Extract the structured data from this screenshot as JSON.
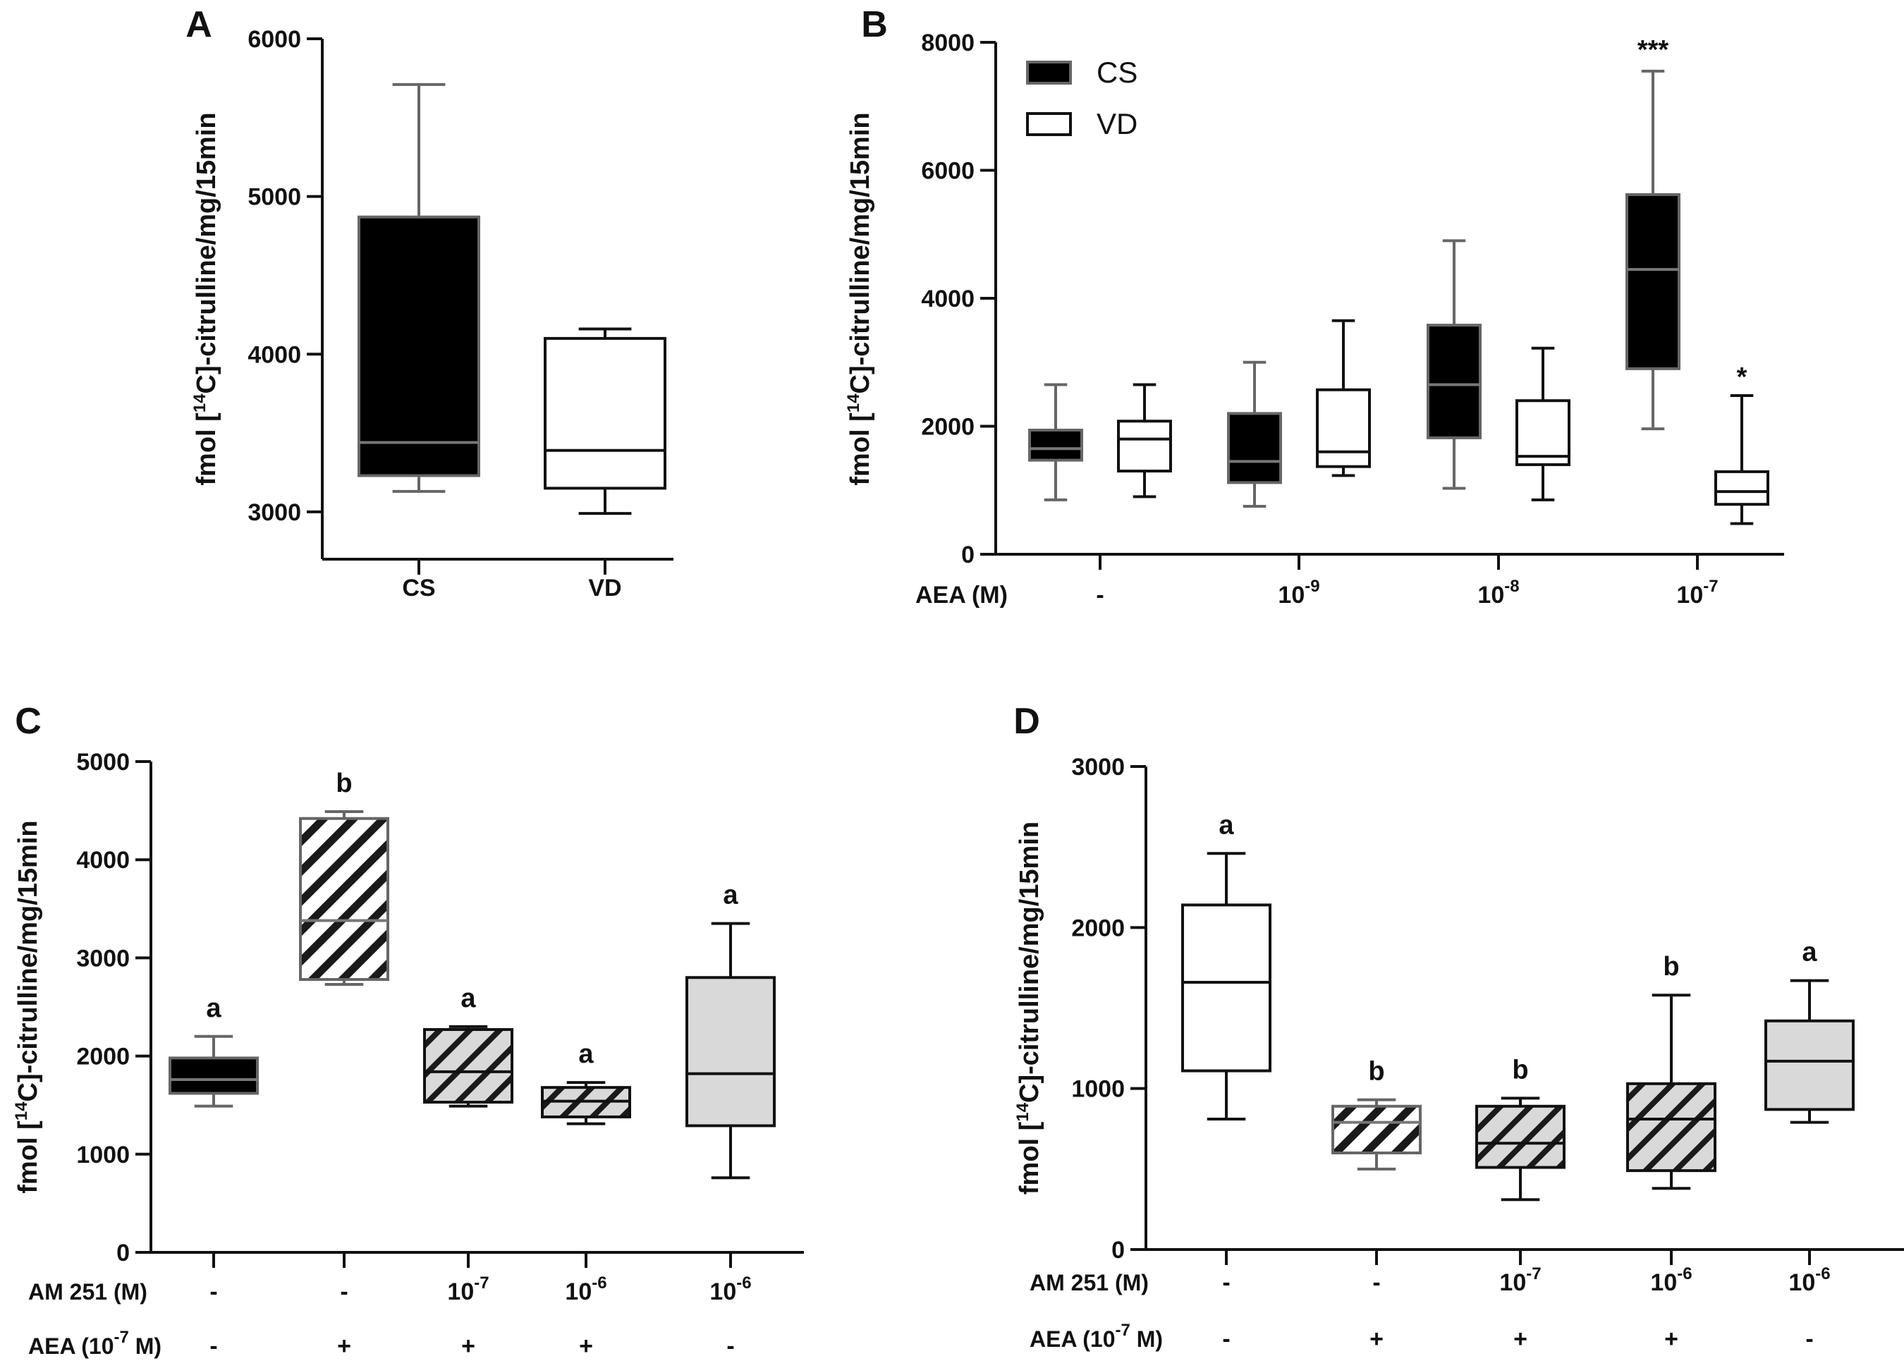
{
  "chart_data": [
    {
      "panel": "A",
      "type": "box",
      "ylabel": {
        "pre": "fmol [",
        "sup": "14",
        "post": "C]-citrulline/mg/15min"
      },
      "ylim": [
        2700,
        6000
      ],
      "yticks": [
        3000,
        4000,
        5000,
        6000
      ],
      "categories": [
        "CS",
        "VD"
      ],
      "boxes": [
        {
          "group": "CS",
          "min": 3130,
          "q1": 3230,
          "median": 3440,
          "q3": 4870,
          "max": 5710,
          "fill": "black"
        },
        {
          "group": "VD",
          "min": 2990,
          "q1": 3150,
          "median": 3390,
          "q3": 4100,
          "max": 4160,
          "fill": "white"
        }
      ]
    },
    {
      "panel": "B",
      "type": "box",
      "ylabel": {
        "pre": "fmol [",
        "sup": "14",
        "post": "C]-citrulline/mg/15min"
      },
      "ylim": [
        0,
        8000
      ],
      "yticks": [
        0,
        2000,
        4000,
        6000,
        8000
      ],
      "legend": [
        {
          "label": "CS",
          "fill": "black"
        },
        {
          "label": "VD",
          "fill": "white"
        }
      ],
      "xrow_label": "AEA (M)",
      "xgroups": [
        {
          "base": "-",
          "sup": ""
        },
        {
          "base": "10",
          "sup": "-9"
        },
        {
          "base": "10",
          "sup": "-8"
        },
        {
          "base": "10",
          "sup": "-7"
        }
      ],
      "boxes": [
        {
          "group": "-",
          "series": "CS",
          "min": 850,
          "q1": 1470,
          "median": 1650,
          "q3": 1940,
          "max": 2650,
          "fill": "black"
        },
        {
          "group": "-",
          "series": "VD",
          "min": 900,
          "q1": 1300,
          "median": 1800,
          "q3": 2080,
          "max": 2650,
          "fill": "white"
        },
        {
          "group": "10^-9",
          "series": "CS",
          "min": 750,
          "q1": 1120,
          "median": 1450,
          "q3": 2200,
          "max": 3000,
          "fill": "black"
        },
        {
          "group": "10^-9",
          "series": "VD",
          "min": 1230,
          "q1": 1370,
          "median": 1600,
          "q3": 2570,
          "max": 3650,
          "fill": "white"
        },
        {
          "group": "10^-8",
          "series": "CS",
          "min": 1030,
          "q1": 1820,
          "median": 2650,
          "q3": 3580,
          "max": 4900,
          "fill": "black"
        },
        {
          "group": "10^-8",
          "series": "VD",
          "min": 850,
          "q1": 1400,
          "median": 1530,
          "q3": 2400,
          "max": 3220,
          "fill": "white"
        },
        {
          "group": "10^-7",
          "series": "CS",
          "min": 1960,
          "q1": 2900,
          "median": 4450,
          "q3": 5620,
          "max": 7550,
          "fill": "black",
          "annotation": "***"
        },
        {
          "group": "10^-7",
          "series": "VD",
          "min": 480,
          "q1": 780,
          "median": 980,
          "q3": 1290,
          "max": 2480,
          "fill": "white",
          "annotation": "*"
        }
      ]
    },
    {
      "panel": "C",
      "type": "box",
      "ylabel": {
        "pre": "fmol [",
        "sup": "14",
        "post": "C]-citrulline/mg/15min"
      },
      "ylim": [
        0,
        5000
      ],
      "yticks": [
        0,
        1000,
        2000,
        3000,
        4000,
        5000
      ],
      "rows": [
        {
          "label": "AM 251 (M)",
          "values": [
            {
              "base": "-",
              "sup": ""
            },
            {
              "base": "-",
              "sup": ""
            },
            {
              "base": "10",
              "sup": "-7"
            },
            {
              "base": "10",
              "sup": "-6"
            },
            {
              "base": "10",
              "sup": "-6"
            }
          ]
        },
        {
          "label_pre": "AEA (10",
          "label_sup": "-7",
          "label_post": " M)",
          "values": [
            {
              "base": "-",
              "sup": ""
            },
            {
              "base": "+",
              "sup": ""
            },
            {
              "base": "+",
              "sup": ""
            },
            {
              "base": "+",
              "sup": ""
            },
            {
              "base": "-",
              "sup": ""
            }
          ]
        }
      ],
      "boxes": [
        {
          "min": 1490,
          "q1": 1620,
          "median": 1760,
          "q3": 1980,
          "max": 2200,
          "fill": "black",
          "letter": "a"
        },
        {
          "min": 2730,
          "q1": 2780,
          "median": 3380,
          "q3": 4420,
          "max": 4490,
          "fill": "hatch-white",
          "letter": "b"
        },
        {
          "min": 1490,
          "q1": 1530,
          "median": 1840,
          "q3": 2270,
          "max": 2300,
          "fill": "hatch-gray",
          "letter": "a"
        },
        {
          "min": 1310,
          "q1": 1380,
          "median": 1540,
          "q3": 1680,
          "max": 1730,
          "fill": "hatch-gray",
          "letter": "a"
        },
        {
          "min": 760,
          "q1": 1290,
          "median": 1820,
          "q3": 2800,
          "max": 3350,
          "fill": "gray",
          "letter": "a"
        }
      ]
    },
    {
      "panel": "D",
      "type": "box",
      "ylabel": {
        "pre": "fmol [",
        "sup": "14",
        "post": "C]-citrulline/mg/15min"
      },
      "ylim": [
        0,
        3000
      ],
      "yticks": [
        0,
        1000,
        2000,
        3000
      ],
      "rows": [
        {
          "label": "AM 251 (M)",
          "values": [
            {
              "base": "-",
              "sup": ""
            },
            {
              "base": "-",
              "sup": ""
            },
            {
              "base": "10",
              "sup": "-7"
            },
            {
              "base": "10",
              "sup": "-6"
            },
            {
              "base": "10",
              "sup": "-6"
            }
          ]
        },
        {
          "label_pre": "AEA (10",
          "label_sup": "-7",
          "label_post": " M)",
          "values": [
            {
              "base": "-",
              "sup": ""
            },
            {
              "base": "+",
              "sup": ""
            },
            {
              "base": "+",
              "sup": ""
            },
            {
              "base": "+",
              "sup": ""
            },
            {
              "base": "-",
              "sup": ""
            }
          ]
        }
      ],
      "boxes": [
        {
          "min": 810,
          "q1": 1110,
          "median": 1660,
          "q3": 2140,
          "max": 2460,
          "fill": "white",
          "letter": "a"
        },
        {
          "min": 500,
          "q1": 600,
          "median": 790,
          "q3": 890,
          "max": 930,
          "fill": "hatch-white",
          "letter": "b"
        },
        {
          "min": 310,
          "q1": 510,
          "median": 660,
          "q3": 890,
          "max": 940,
          "fill": "hatch-gray",
          "letter": "b"
        },
        {
          "min": 380,
          "q1": 490,
          "median": 810,
          "q3": 1030,
          "max": 1580,
          "fill": "hatch-gray",
          "letter": "b"
        },
        {
          "min": 790,
          "q1": 870,
          "median": 1170,
          "q3": 1420,
          "max": 1670,
          "fill": "gray",
          "letter": "a"
        }
      ]
    }
  ]
}
